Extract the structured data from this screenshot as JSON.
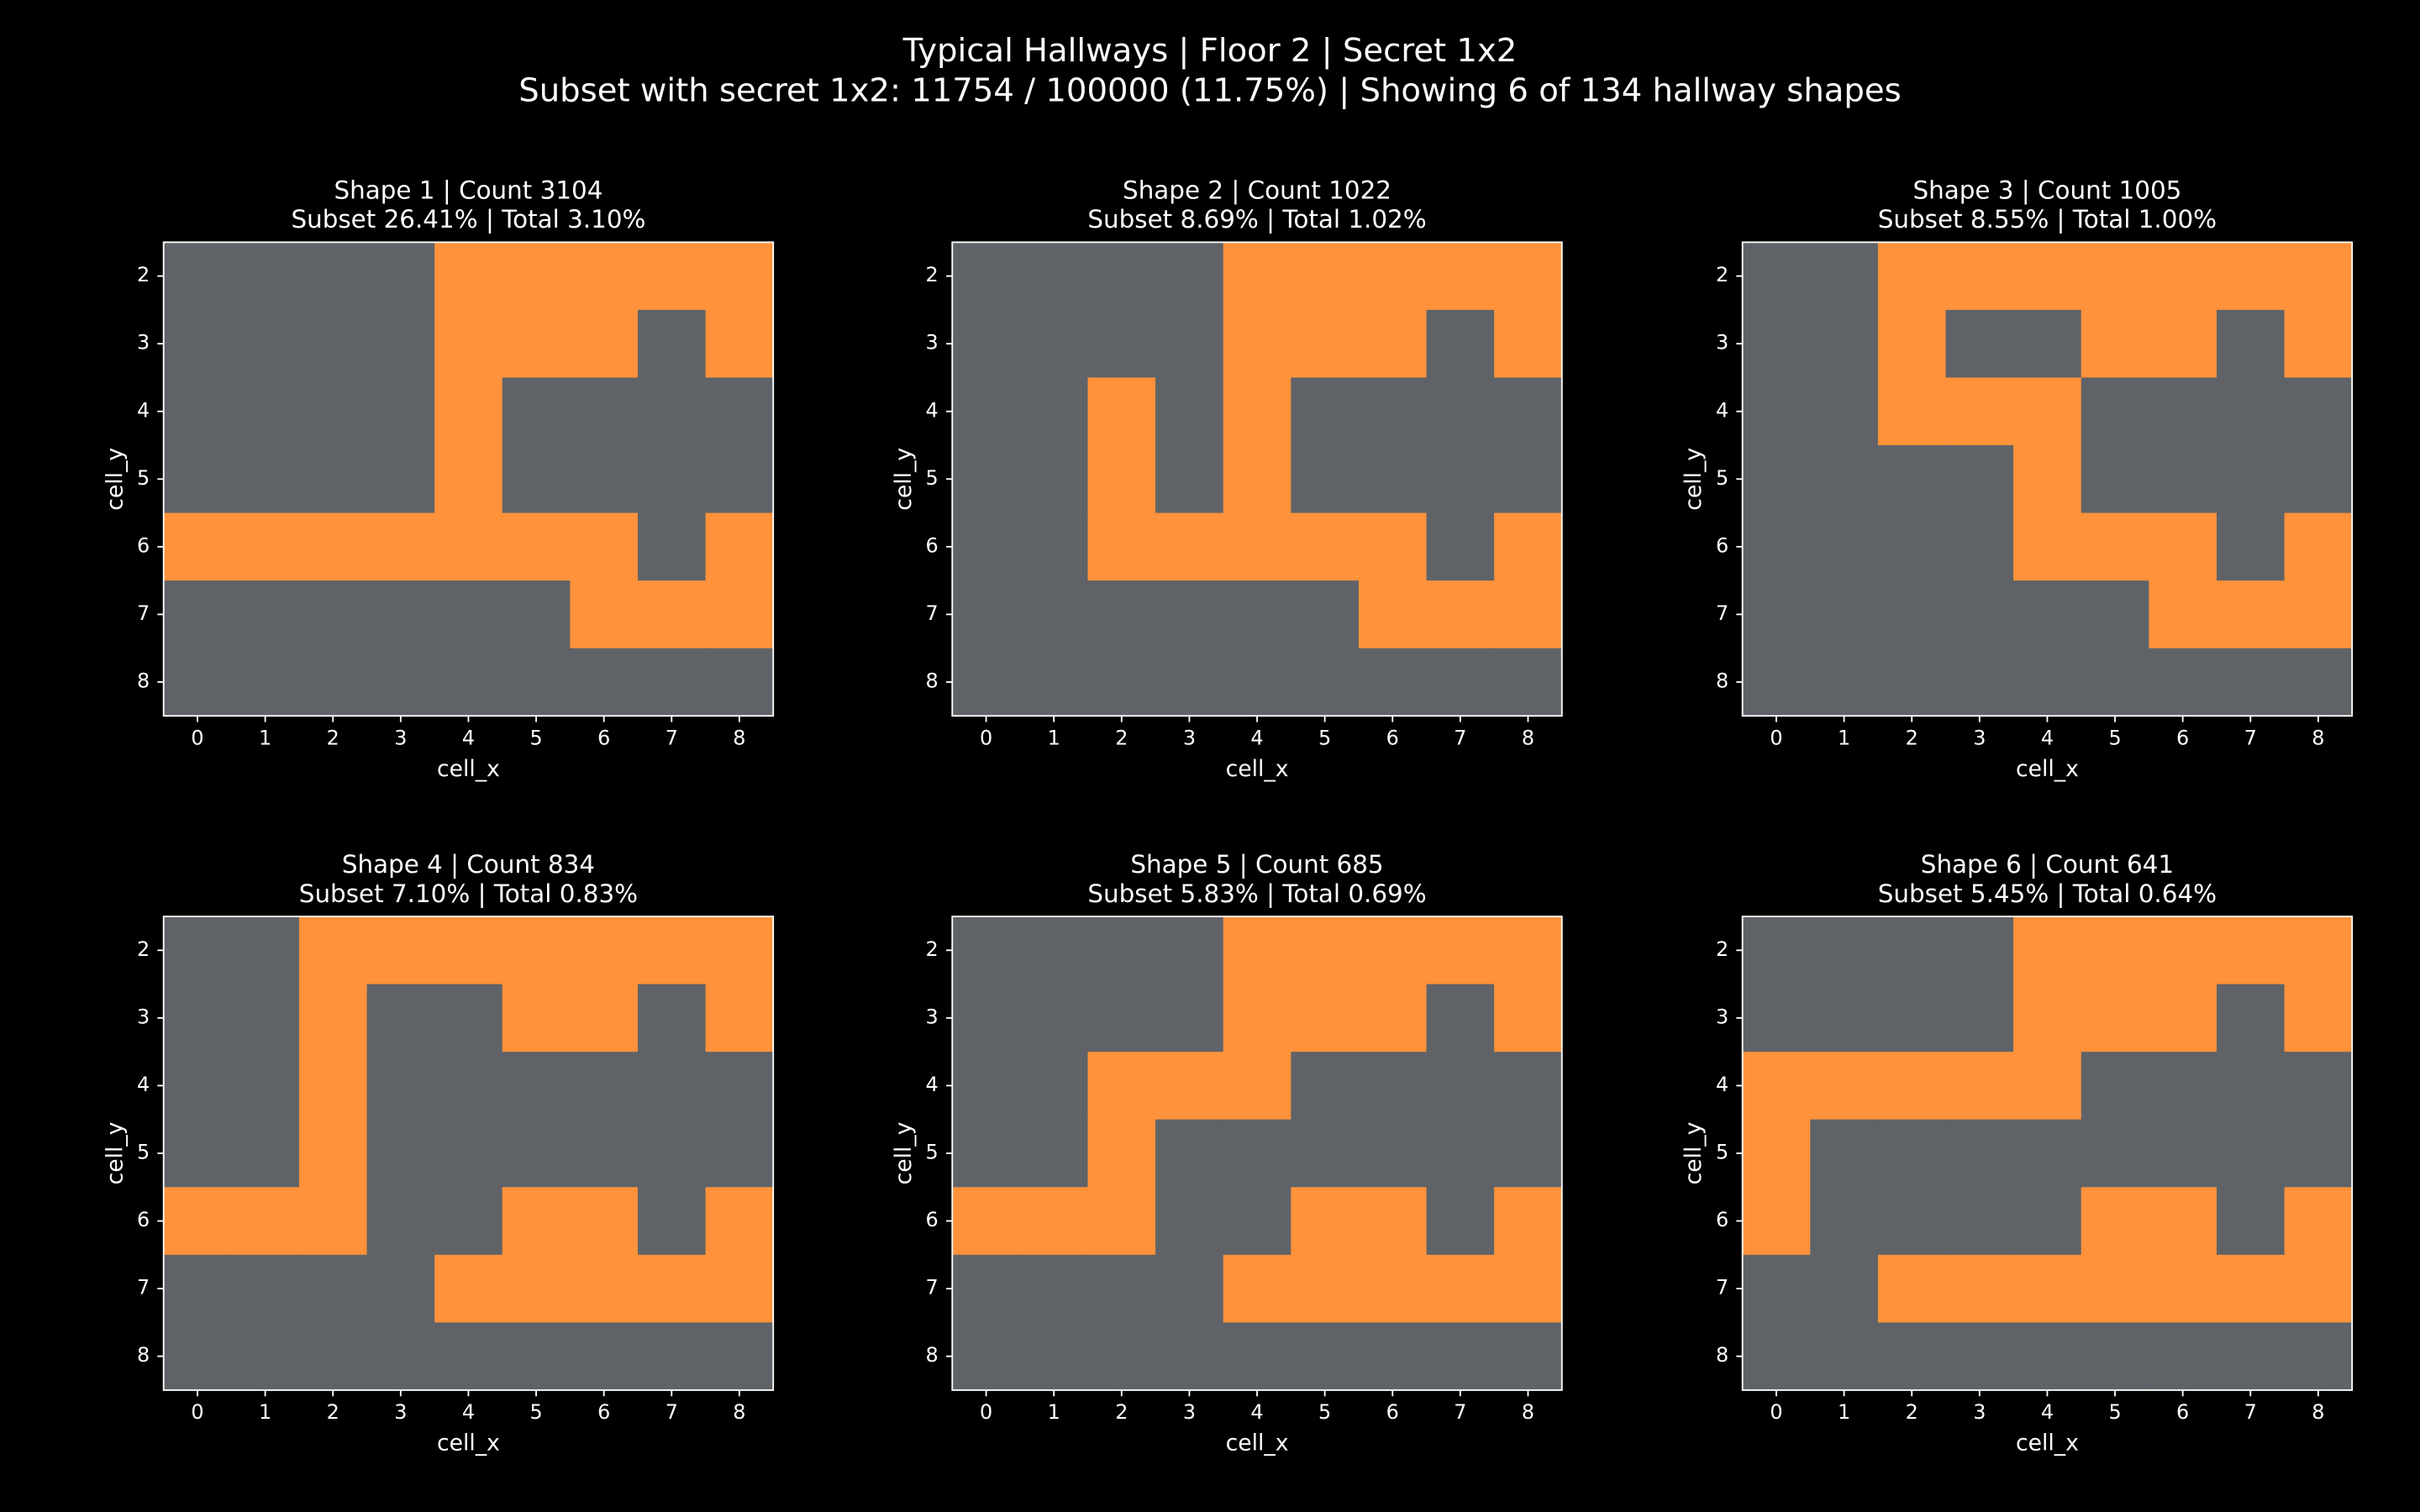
{
  "title": "Typical Hallways | Floor 2 | Secret 1x2",
  "subtitle": "Subset with secret 1x2: 11754 / 100000 (11.75%) | Showing 6 of 134 hallway shapes",
  "chart_data": [
    {
      "type": "heatmap",
      "title": "Shape 1 | Count 3104",
      "subtitle": "Subset 26.41% | Total 3.10%",
      "x_label": "cell_x",
      "y_label": "cell_y",
      "x": [
        0,
        1,
        2,
        3,
        4,
        5,
        6,
        7,
        8
      ],
      "y": [
        2,
        3,
        4,
        5,
        6,
        7,
        8
      ],
      "values": [
        [
          0,
          0,
          0,
          0,
          1,
          1,
          1,
          1,
          1
        ],
        [
          0,
          0,
          0,
          0,
          1,
          1,
          1,
          0,
          1
        ],
        [
          0,
          0,
          0,
          0,
          1,
          0,
          0,
          0,
          0
        ],
        [
          0,
          0,
          0,
          0,
          1,
          0,
          0,
          0,
          0
        ],
        [
          1,
          1,
          1,
          1,
          1,
          1,
          1,
          0,
          1
        ],
        [
          0,
          0,
          0,
          0,
          0,
          0,
          1,
          1,
          1
        ],
        [
          0,
          0,
          0,
          0,
          0,
          0,
          0,
          0,
          0
        ]
      ],
      "colors": [
        "#5f6368",
        "#ff923a"
      ],
      "xlim": [
        -0.5,
        8.5
      ],
      "ylim": [
        8.5,
        1.5
      ],
      "xticks": [
        0,
        1,
        2,
        3,
        4,
        5,
        6,
        7,
        8
      ],
      "yticks": [
        2,
        3,
        4,
        5,
        6,
        7,
        8
      ]
    },
    {
      "type": "heatmap",
      "title": "Shape 2 | Count 1022",
      "subtitle": "Subset 8.69% | Total 1.02%",
      "x_label": "cell_x",
      "y_label": "cell_y",
      "x": [
        0,
        1,
        2,
        3,
        4,
        5,
        6,
        7,
        8
      ],
      "y": [
        2,
        3,
        4,
        5,
        6,
        7,
        8
      ],
      "values": [
        [
          0,
          0,
          0,
          0,
          1,
          1,
          1,
          1,
          1
        ],
        [
          0,
          0,
          0,
          0,
          1,
          1,
          1,
          0,
          1
        ],
        [
          0,
          0,
          1,
          0,
          1,
          0,
          0,
          0,
          0
        ],
        [
          0,
          0,
          1,
          0,
          1,
          0,
          0,
          0,
          0
        ],
        [
          0,
          0,
          1,
          1,
          1,
          1,
          1,
          0,
          1
        ],
        [
          0,
          0,
          0,
          0,
          0,
          0,
          1,
          1,
          1
        ],
        [
          0,
          0,
          0,
          0,
          0,
          0,
          0,
          0,
          0
        ]
      ],
      "colors": [
        "#5f6368",
        "#ff923a"
      ],
      "xlim": [
        -0.5,
        8.5
      ],
      "ylim": [
        8.5,
        1.5
      ],
      "xticks": [
        0,
        1,
        2,
        3,
        4,
        5,
        6,
        7,
        8
      ],
      "yticks": [
        2,
        3,
        4,
        5,
        6,
        7,
        8
      ]
    },
    {
      "type": "heatmap",
      "title": "Shape 3 | Count 1005",
      "subtitle": "Subset 8.55% | Total 1.00%",
      "x_label": "cell_x",
      "y_label": "cell_y",
      "x": [
        0,
        1,
        2,
        3,
        4,
        5,
        6,
        7,
        8
      ],
      "y": [
        2,
        3,
        4,
        5,
        6,
        7,
        8
      ],
      "values": [
        [
          0,
          0,
          1,
          1,
          1,
          1,
          1,
          1,
          1
        ],
        [
          0,
          0,
          1,
          0,
          0,
          1,
          1,
          0,
          1
        ],
        [
          0,
          0,
          1,
          1,
          1,
          0,
          0,
          0,
          0
        ],
        [
          0,
          0,
          0,
          0,
          1,
          0,
          0,
          0,
          0
        ],
        [
          0,
          0,
          0,
          0,
          1,
          1,
          1,
          0,
          1
        ],
        [
          0,
          0,
          0,
          0,
          0,
          0,
          1,
          1,
          1
        ],
        [
          0,
          0,
          0,
          0,
          0,
          0,
          0,
          0,
          0
        ]
      ],
      "colors": [
        "#5f6368",
        "#ff923a"
      ],
      "xlim": [
        -0.5,
        8.5
      ],
      "ylim": [
        8.5,
        1.5
      ],
      "xticks": [
        0,
        1,
        2,
        3,
        4,
        5,
        6,
        7,
        8
      ],
      "yticks": [
        2,
        3,
        4,
        5,
        6,
        7,
        8
      ]
    },
    {
      "type": "heatmap",
      "title": "Shape 4 | Count 834",
      "subtitle": "Subset 7.10% | Total 0.83%",
      "x_label": "cell_x",
      "y_label": "cell_y",
      "x": [
        0,
        1,
        2,
        3,
        4,
        5,
        6,
        7,
        8
      ],
      "y": [
        2,
        3,
        4,
        5,
        6,
        7,
        8
      ],
      "values": [
        [
          0,
          0,
          1,
          1,
          1,
          1,
          1,
          1,
          1
        ],
        [
          0,
          0,
          1,
          0,
          0,
          1,
          1,
          0,
          1
        ],
        [
          0,
          0,
          1,
          0,
          0,
          0,
          0,
          0,
          0
        ],
        [
          0,
          0,
          1,
          0,
          0,
          0,
          0,
          0,
          0
        ],
        [
          1,
          1,
          1,
          0,
          0,
          1,
          1,
          0,
          1
        ],
        [
          0,
          0,
          0,
          0,
          1,
          1,
          1,
          1,
          1
        ],
        [
          0,
          0,
          0,
          0,
          0,
          0,
          0,
          0,
          0
        ]
      ],
      "colors": [
        "#5f6368",
        "#ff923a"
      ],
      "xlim": [
        -0.5,
        8.5
      ],
      "ylim": [
        8.5,
        1.5
      ],
      "xticks": [
        0,
        1,
        2,
        3,
        4,
        5,
        6,
        7,
        8
      ],
      "yticks": [
        2,
        3,
        4,
        5,
        6,
        7,
        8
      ]
    },
    {
      "type": "heatmap",
      "title": "Shape 5 | Count 685",
      "subtitle": "Subset 5.83% | Total 0.69%",
      "x_label": "cell_x",
      "y_label": "cell_y",
      "x": [
        0,
        1,
        2,
        3,
        4,
        5,
        6,
        7,
        8
      ],
      "y": [
        2,
        3,
        4,
        5,
        6,
        7,
        8
      ],
      "values": [
        [
          0,
          0,
          0,
          0,
          1,
          1,
          1,
          1,
          1
        ],
        [
          0,
          0,
          0,
          0,
          1,
          1,
          1,
          0,
          1
        ],
        [
          0,
          0,
          1,
          1,
          1,
          0,
          0,
          0,
          0
        ],
        [
          0,
          0,
          1,
          0,
          0,
          0,
          0,
          0,
          0
        ],
        [
          1,
          1,
          1,
          0,
          0,
          1,
          1,
          0,
          1
        ],
        [
          0,
          0,
          0,
          0,
          1,
          1,
          1,
          1,
          1
        ],
        [
          0,
          0,
          0,
          0,
          0,
          0,
          0,
          0,
          0
        ]
      ],
      "colors": [
        "#5f6368",
        "#ff923a"
      ],
      "xlim": [
        -0.5,
        8.5
      ],
      "ylim": [
        8.5,
        1.5
      ],
      "xticks": [
        0,
        1,
        2,
        3,
        4,
        5,
        6,
        7,
        8
      ],
      "yticks": [
        2,
        3,
        4,
        5,
        6,
        7,
        8
      ]
    },
    {
      "type": "heatmap",
      "title": "Shape 6 | Count 641",
      "subtitle": "Subset 5.45% | Total 0.64%",
      "x_label": "cell_x",
      "y_label": "cell_y",
      "x": [
        0,
        1,
        2,
        3,
        4,
        5,
        6,
        7,
        8
      ],
      "y": [
        2,
        3,
        4,
        5,
        6,
        7,
        8
      ],
      "values": [
        [
          0,
          0,
          0,
          0,
          1,
          1,
          1,
          1,
          1
        ],
        [
          0,
          0,
          0,
          0,
          1,
          1,
          1,
          0,
          1
        ],
        [
          1,
          1,
          1,
          1,
          1,
          0,
          0,
          0,
          0
        ],
        [
          1,
          0,
          0,
          0,
          0,
          0,
          0,
          0,
          0
        ],
        [
          1,
          0,
          0,
          0,
          0,
          1,
          1,
          0,
          1
        ],
        [
          0,
          0,
          1,
          1,
          1,
          1,
          1,
          1,
          1
        ],
        [
          0,
          0,
          0,
          0,
          0,
          0,
          0,
          0,
          0
        ]
      ],
      "colors": [
        "#5f6368",
        "#ff923a"
      ],
      "xlim": [
        -0.5,
        8.5
      ],
      "ylim": [
        8.5,
        1.5
      ],
      "xticks": [
        0,
        1,
        2,
        3,
        4,
        5,
        6,
        7,
        8
      ],
      "yticks": [
        2,
        3,
        4,
        5,
        6,
        7,
        8
      ]
    }
  ]
}
